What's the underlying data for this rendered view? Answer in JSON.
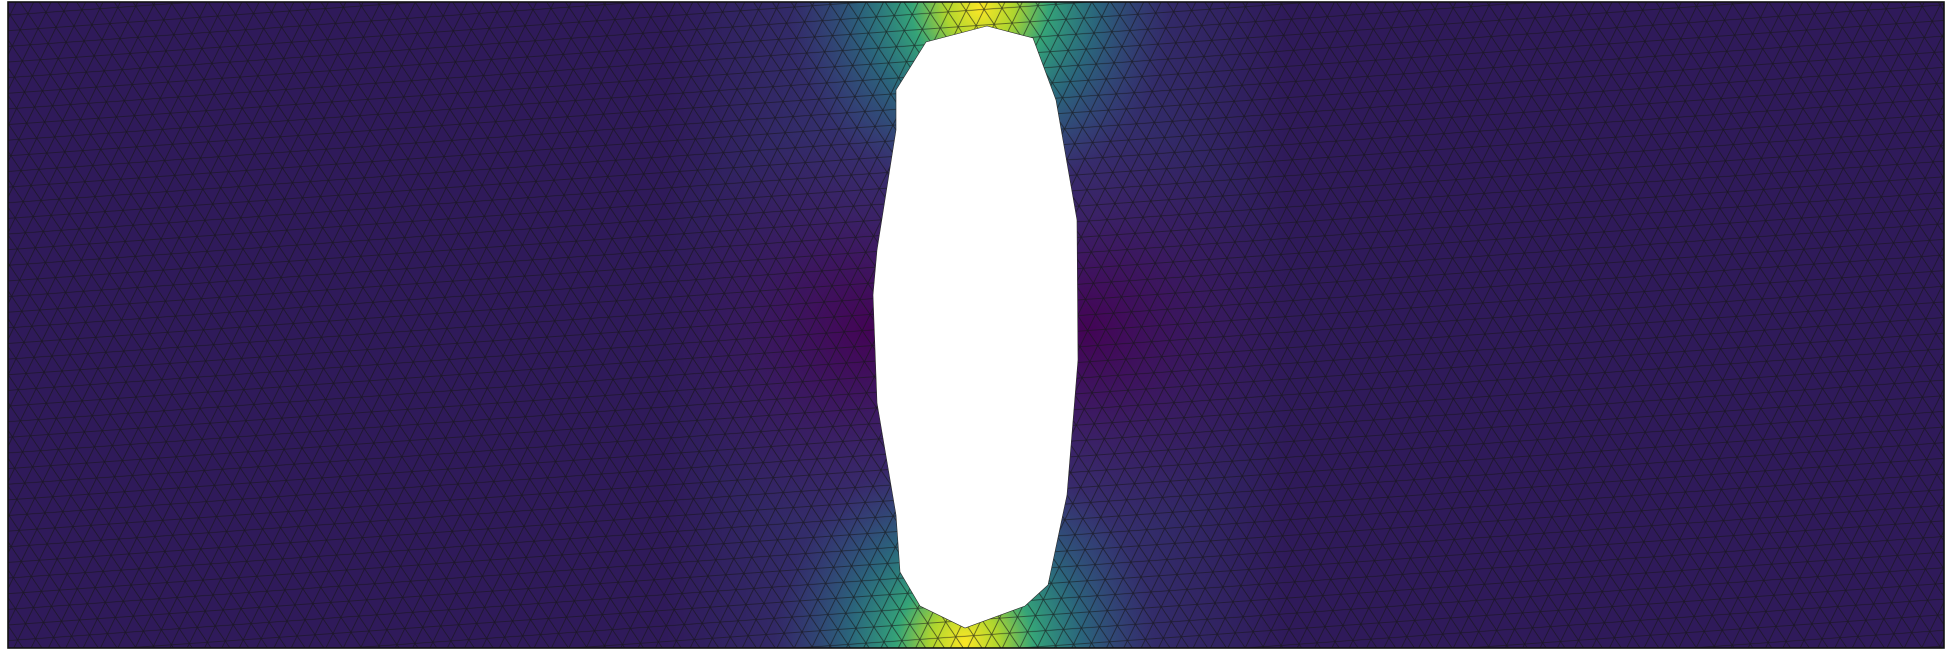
{
  "figure": {
    "kind": "finite-element mesh contour",
    "colormap": "viridis",
    "background": "#ffffff",
    "mesh_line_color": "#1a1a1a",
    "hole_fill": "#ffffff",
    "colorbar_shown": false,
    "axes_shown": false,
    "text_shown": false
  },
  "palette": {
    "dark_purple": "#440154",
    "blue": "#3b528b",
    "teal": "#21918c",
    "green": "#5ec962",
    "yellow": "#fde725"
  }
}
